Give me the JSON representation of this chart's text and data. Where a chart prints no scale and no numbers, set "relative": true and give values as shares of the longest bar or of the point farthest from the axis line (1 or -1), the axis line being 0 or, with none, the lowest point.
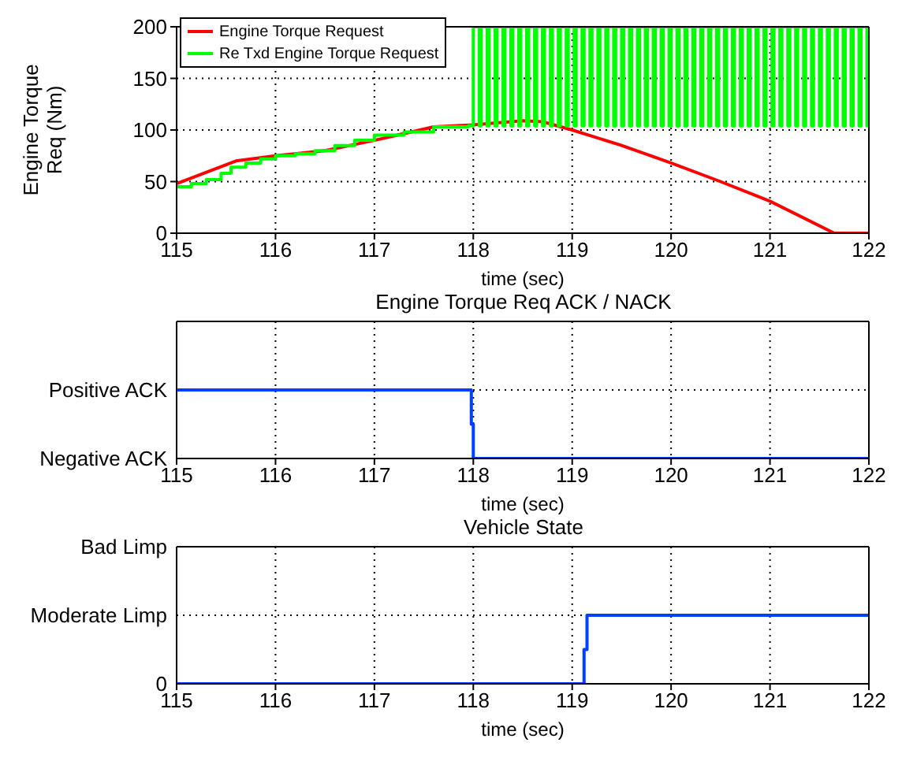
{
  "chart_data": [
    {
      "type": "line",
      "xlabel": "time (sec)",
      "ylabel": "Engine Torque Req (Nm)",
      "xlim": [
        115,
        122
      ],
      "xticks": [
        115,
        116,
        117,
        118,
        119,
        120,
        121,
        122
      ],
      "ylim": [
        0,
        200
      ],
      "yticks": [
        0,
        50,
        100,
        150,
        200
      ],
      "grid": true,
      "legend": "top left",
      "series": [
        {
          "name": "Engine Torque Request",
          "color": "#ff0000",
          "x": [
            115,
            115.6,
            116,
            116.5,
            117,
            117.6,
            118,
            118.5,
            118.7,
            119,
            119.5,
            120,
            120.5,
            121,
            121.65,
            122
          ],
          "values": [
            48,
            70,
            75,
            80,
            90,
            103,
            105,
            109,
            108,
            100,
            85,
            68,
            50,
            31,
            0,
            0
          ]
        },
        {
          "name": "Re Txd Engine Torque Request",
          "type": "step",
          "color": "#00ff00",
          "x": [
            115,
            115.15,
            115.3,
            115.45,
            115.55,
            115.7,
            115.85,
            116,
            116.2,
            116.4,
            116.6,
            116.8,
            117,
            117.3,
            117.6,
            117.95,
            118.0,
            118.06,
            118.08,
            118.14,
            118.16,
            118.22,
            118.24,
            118.3,
            118.32,
            118.38,
            118.4,
            118.46,
            118.48,
            118.54,
            118.56,
            118.62,
            118.64,
            118.7,
            118.72,
            118.78,
            118.8,
            118.86,
            118.88,
            118.94,
            118.96,
            119.02,
            119.04,
            119.1,
            119.12,
            119.18,
            119.2,
            119.26,
            119.28,
            119.34,
            119.36,
            119.42,
            119.44,
            119.5,
            119.52,
            119.58,
            119.6,
            119.66,
            119.68,
            119.74,
            119.76,
            119.82,
            119.84,
            119.9,
            119.92,
            119.98,
            120.0,
            120.06,
            120.08,
            120.14,
            120.16,
            120.22,
            120.24,
            120.3,
            120.32,
            120.38,
            120.4,
            120.46,
            120.48,
            120.54,
            120.56,
            120.62,
            120.64,
            120.7,
            120.72,
            120.78,
            120.8,
            120.86,
            120.88,
            120.94,
            120.96,
            121.02,
            121.04,
            121.1,
            121.12,
            121.18,
            121.2,
            121.26,
            121.28,
            121.34,
            121.36,
            121.42,
            121.44,
            121.5,
            121.52,
            121.58,
            121.6,
            121.66,
            121.68,
            121.74,
            121.76,
            121.82,
            121.84,
            121.9,
            121.92,
            121.98,
            122
          ],
          "values": [
            45,
            48,
            52,
            58,
            64,
            68,
            72,
            75,
            77,
            80,
            85,
            90,
            95,
            98,
            103,
            104,
            200,
            104,
            200,
            104,
            200,
            104,
            200,
            104,
            200,
            104,
            200,
            104,
            200,
            104,
            200,
            104,
            200,
            104,
            200,
            104,
            200,
            104,
            200,
            104,
            200,
            104,
            200,
            104,
            200,
            104,
            200,
            104,
            200,
            104,
            200,
            104,
            200,
            104,
            200,
            104,
            200,
            104,
            200,
            104,
            200,
            104,
            200,
            104,
            200,
            104,
            200,
            104,
            200,
            104,
            200,
            104,
            200,
            104,
            200,
            104,
            200,
            104,
            200,
            104,
            200,
            104,
            200,
            104,
            200,
            104,
            200,
            104,
            200,
            104,
            200,
            104,
            200,
            104,
            200,
            104,
            200,
            104,
            200,
            104,
            200,
            104,
            200,
            104,
            200,
            104,
            200,
            104,
            200,
            104,
            200,
            104,
            200,
            104,
            200,
            104,
            104
          ]
        }
      ]
    },
    {
      "type": "step",
      "title": "Engine Torque Req ACK / NACK",
      "xlabel": "time (sec)",
      "xlim": [
        115,
        122
      ],
      "xticks": [
        115,
        116,
        117,
        118,
        119,
        120,
        121,
        122
      ],
      "y_categories": [
        null,
        "Positive ACK",
        "Negative ACK"
      ],
      "relative": true,
      "grid": true,
      "series": [
        {
          "color": "#0040ff",
          "x": [
            115,
            117.98,
            118,
            122
          ],
          "values": [
            1,
            0.5,
            0,
            0
          ]
        }
      ]
    },
    {
      "type": "step",
      "title": "Vehicle State",
      "xlabel": "time (sec)",
      "xlim": [
        115,
        122
      ],
      "xticks": [
        115,
        116,
        117,
        118,
        119,
        120,
        121,
        122
      ],
      "y_categories": [
        "Bad Limp",
        "Moderate Limp",
        "0"
      ],
      "relative": true,
      "grid": true,
      "series": [
        {
          "color": "#0040ff",
          "x": [
            115,
            119.12,
            119.15,
            122
          ],
          "values": [
            0,
            0.5,
            1,
            1
          ]
        }
      ]
    }
  ]
}
